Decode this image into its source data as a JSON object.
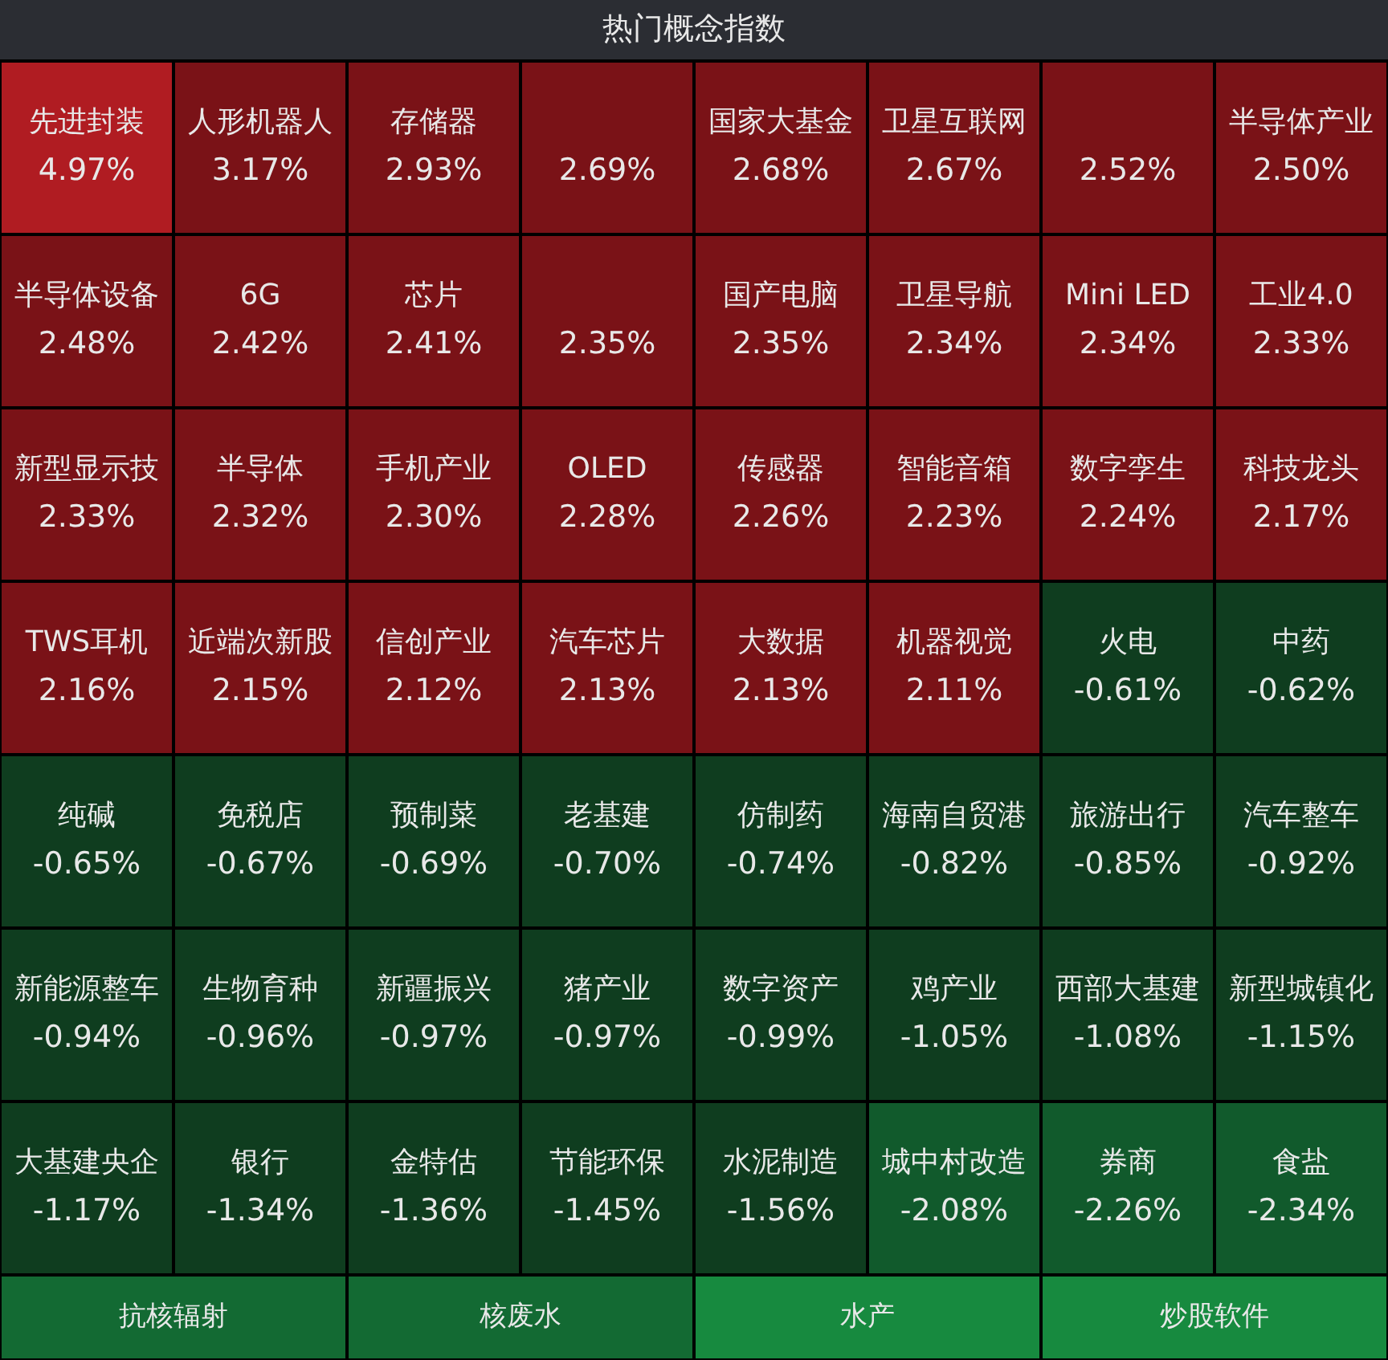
{
  "chart_data": {
    "type": "other",
    "title": "热门概念指数",
    "categories": [
      "先进封装",
      "人形机器人",
      "存储器",
      null,
      "国家大基金",
      "卫星互联网",
      null,
      "半导体产业",
      "半导体设备",
      "6G",
      "芯片",
      null,
      "国产电脑",
      "卫星导航",
      "Mini LED",
      "工业4.0",
      "新型显示技",
      "半导体",
      "手机产业",
      "OLED",
      "传感器",
      "智能音箱",
      "数字孪生",
      "科技龙头",
      "TWS耳机",
      "近端次新股",
      "信创产业",
      "汽车芯片",
      "大数据",
      "机器视觉",
      "火电",
      "中药",
      "纯碱",
      "免税店",
      "预制菜",
      "老基建",
      "仿制药",
      "海南自贸港",
      "旅游出行",
      "汽车整车",
      "新能源整车",
      "生物育种",
      "新疆振兴",
      "猪产业",
      "数字资产",
      "鸡产业",
      "西部大基建",
      "新型城镇化",
      "大基建央企",
      "银行",
      "金特估",
      "节能环保",
      "水泥制造",
      "城中村改造",
      "券商",
      "食盐",
      "抗核辐射",
      "核废水",
      "水产",
      "炒股软件"
    ],
    "values": [
      4.97,
      3.17,
      2.93,
      2.69,
      2.68,
      2.67,
      2.52,
      2.5,
      2.48,
      2.42,
      2.41,
      2.35,
      2.35,
      2.34,
      2.34,
      2.33,
      2.33,
      2.32,
      2.3,
      2.28,
      2.26,
      2.23,
      2.24,
      2.17,
      2.16,
      2.15,
      2.12,
      2.13,
      2.13,
      2.11,
      -0.61,
      -0.62,
      -0.65,
      -0.67,
      -0.69,
      -0.7,
      -0.74,
      -0.82,
      -0.85,
      -0.92,
      -0.94,
      -0.96,
      -0.97,
      -0.97,
      -0.99,
      -1.05,
      -1.08,
      -1.15,
      -1.17,
      -1.34,
      -1.36,
      -1.45,
      -1.56,
      -2.08,
      -2.26,
      -2.34,
      null,
      null,
      null,
      null
    ],
    "value_labels": [
      "4.97%",
      "3.17%",
      "2.93%",
      "2.69%",
      "2.68%",
      "2.67%",
      "2.52%",
      "2.50%",
      "2.48%",
      "2.42%",
      "2.41%",
      "2.35%",
      "2.35%",
      "2.34%",
      "2.34%",
      "2.33%",
      "2.33%",
      "2.32%",
      "2.30%",
      "2.28%",
      "2.26%",
      "2.23%",
      "2.24%",
      "2.17%",
      "2.16%",
      "2.15%",
      "2.12%",
      "2.13%",
      "2.13%",
      "2.11%",
      "-0.61%",
      "-0.62%",
      "-0.65%",
      "-0.67%",
      "-0.69%",
      "-0.70%",
      "-0.74%",
      "-0.82%",
      "-0.85%",
      "-0.92%",
      "-0.94%",
      "-0.96%",
      "-0.97%",
      "-0.97%",
      "-0.99%",
      "-1.05%",
      "-1.08%",
      "-1.15%",
      "-1.17%",
      "-1.34%",
      "-1.36%",
      "-1.45%",
      "-1.56%",
      "-2.08%",
      "-2.26%",
      "-2.34%",
      null,
      null,
      null,
      null
    ],
    "colors": [
      "#b01c22",
      "#7a1217",
      "#7a1217",
      "#7a1217",
      "#7a1217",
      "#7a1217",
      "#7a1217",
      "#7a1217",
      "#7a1217",
      "#7a1217",
      "#7a1217",
      "#7a1217",
      "#7a1217",
      "#7a1217",
      "#7a1217",
      "#7a1217",
      "#7a1217",
      "#7a1217",
      "#7a1217",
      "#7a1217",
      "#7a1217",
      "#7a1217",
      "#7a1217",
      "#7a1217",
      "#7a1217",
      "#7a1217",
      "#7a1217",
      "#7a1217",
      "#7a1217",
      "#7a1217",
      "#0f3d1f",
      "#0f3d1f",
      "#0f3d1f",
      "#0f3d1f",
      "#0f3d1f",
      "#0f3d1f",
      "#0f3d1f",
      "#0f3d1f",
      "#0f3d1f",
      "#0f3d1f",
      "#0f3d1f",
      "#0f3d1f",
      "#0f3d1f",
      "#0f3d1f",
      "#0f3d1f",
      "#0f3d1f",
      "#0f3d1f",
      "#0f3d1f",
      "#0f3d1f",
      "#0f3d1f",
      "#0f3d1f",
      "#0f3d1f",
      "#0f3d1f",
      "#115a2c",
      "#115a2c",
      "#115a2c",
      "#136a33",
      "#136a33",
      "#178a3f",
      "#178a3f"
    ]
  }
}
